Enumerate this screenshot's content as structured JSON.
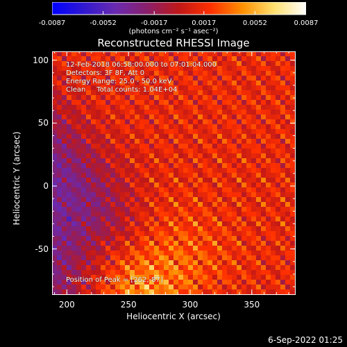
{
  "chart_data": {
    "type": "heatmap",
    "title": "Reconstructed RHESSI Image",
    "xlabel": "Heliocentric X (arcsec)",
    "ylabel": "Heliocentric Y (arcsec)",
    "xlim": [
      188,
      385
    ],
    "ylim": [
      -86,
      107
    ],
    "x_ticks": [
      200,
      250,
      300,
      350
    ],
    "y_ticks": [
      100,
      50,
      0,
      -50
    ],
    "colorbar": {
      "ticks": [
        "-0.0087",
        "-0.0052",
        "-0.0017",
        "0.0017",
        "0.0052",
        "0.0087"
      ],
      "tick_values": [
        -0.0087,
        -0.0052,
        -0.0017,
        0.0017,
        0.0052,
        0.0087
      ],
      "units_label": "(photons cm⁻² s⁻¹ asec⁻²)",
      "colors": [
        "#0000ff",
        "#3018d0",
        "#6a2ab0",
        "#8a1f6a",
        "#c01818",
        "#ff3000",
        "#ff9000",
        "#ffe070",
        "#ffffff"
      ]
    },
    "annotations": [
      "12-Feb-2018 06:58:00.000 to 07:01:04.000",
      "Detectors: 3F 8F, Att 0",
      "Energy Range: 25.0 - 50.0 keV",
      "Clean     Total counts: 1.04E+04"
    ],
    "peak_label": "Position of Peak = [262,-87]",
    "peak_position": [
      262,
      -87
    ]
  },
  "footer_date": "6-Sep-2022 01:25"
}
